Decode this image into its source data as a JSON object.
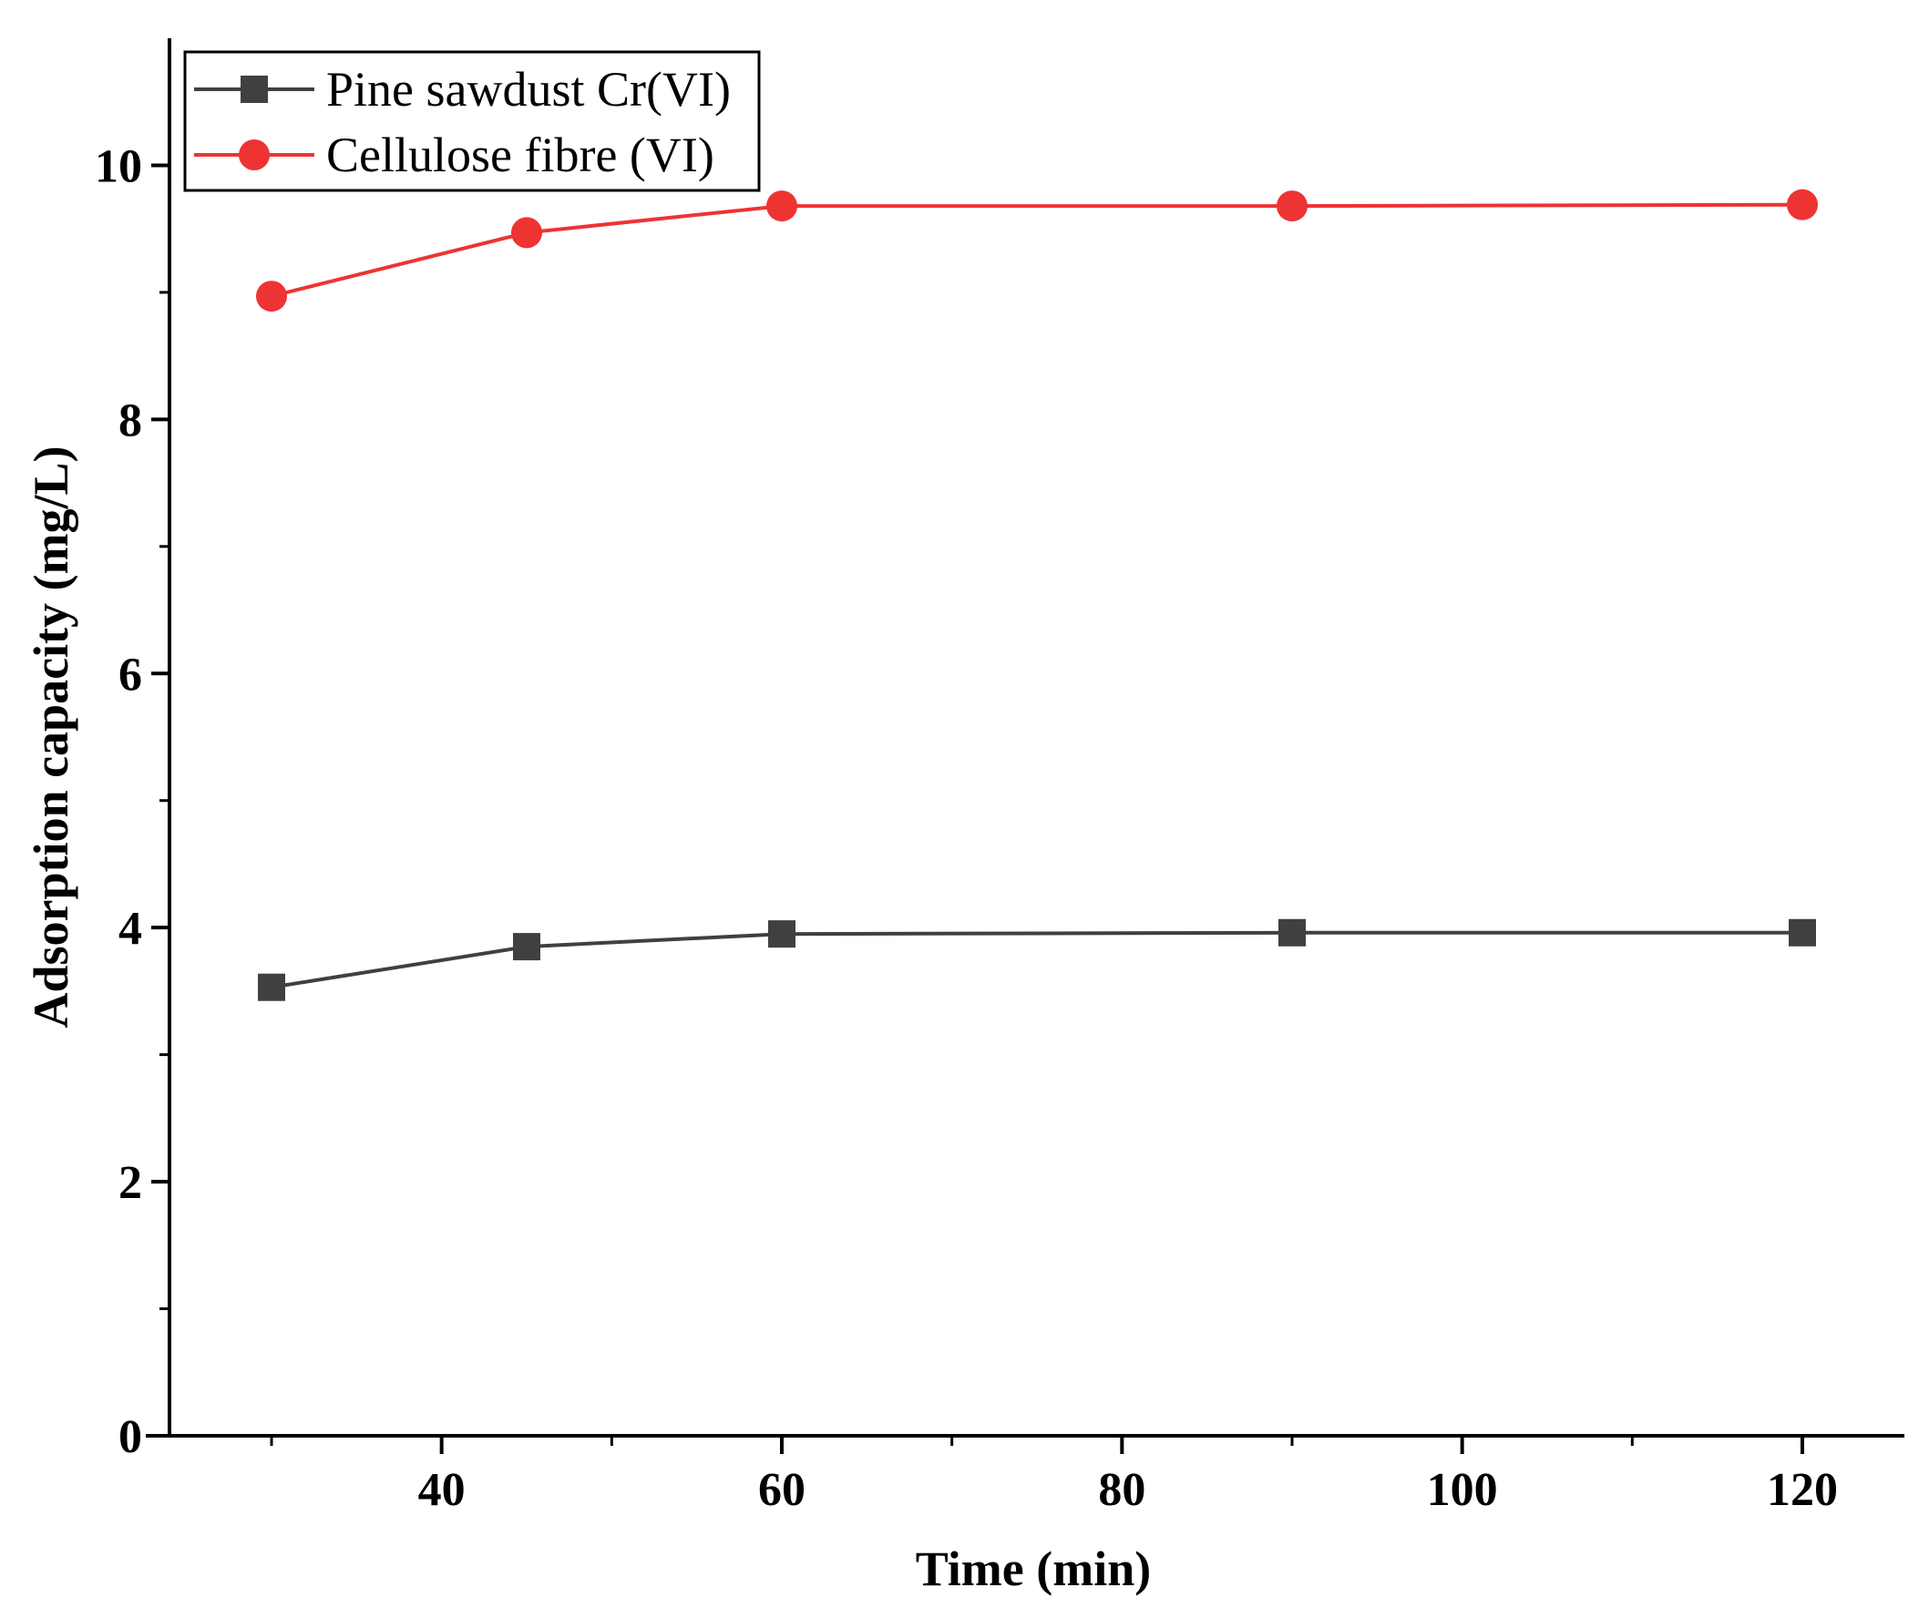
{
  "chart_data": {
    "type": "line",
    "title": "",
    "xlabel": "Time (min)",
    "ylabel": "Adsorption capacity (mg/L)",
    "xlim": [
      24,
      126
    ],
    "ylim": [
      0,
      11
    ],
    "xticks": [
      40,
      60,
      80,
      100,
      120
    ],
    "xtick_labels": [
      "40",
      "60",
      "80",
      "100",
      "120"
    ],
    "yticks": [
      0,
      2,
      4,
      6,
      8,
      10
    ],
    "ytick_labels": [
      "0",
      "2",
      "4",
      "6",
      "8",
      "10"
    ],
    "grid": false,
    "legend_position": "top-left",
    "series": [
      {
        "name": "Pine sawdust Cr(VI)",
        "marker": "square",
        "color": "#404040",
        "x": [
          30,
          45,
          60,
          90,
          120
        ],
        "values": [
          3.53,
          3.85,
          3.95,
          3.96,
          3.96
        ]
      },
      {
        "name": "Cellulose fibre (VI)",
        "marker": "circle",
        "color": "#ee3333",
        "x": [
          30,
          45,
          60,
          90,
          120
        ],
        "values": [
          8.97,
          9.47,
          9.68,
          9.68,
          9.69
        ]
      }
    ]
  }
}
